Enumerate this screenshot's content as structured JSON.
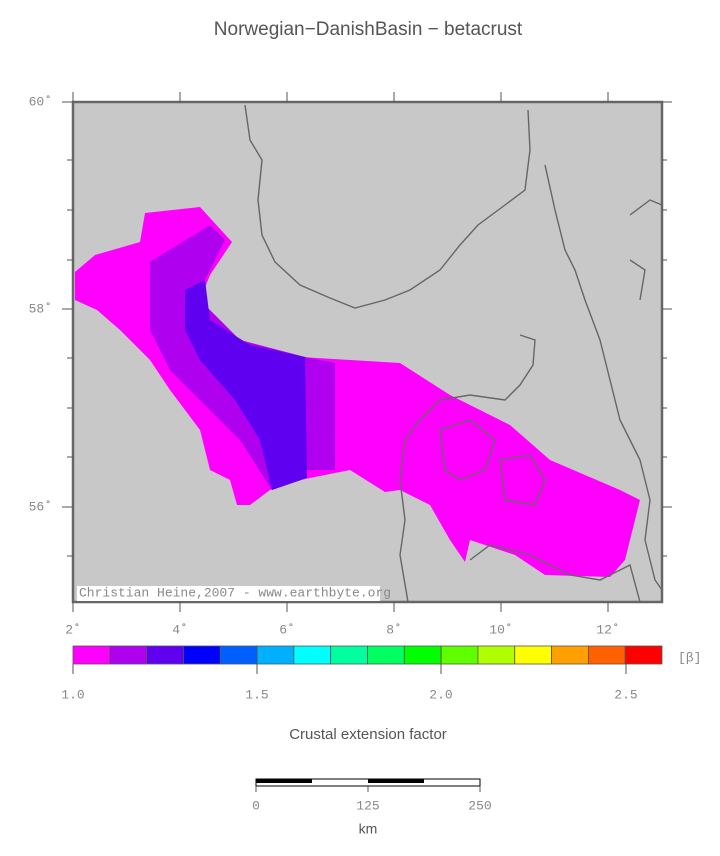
{
  "title": "Norwegian−DanishBasin − betacrust",
  "map": {
    "lat_labels": [
      "60˚",
      "58˚",
      "56˚"
    ],
    "lon_labels": [
      "2˚",
      "4˚",
      "6˚",
      "8˚",
      "10˚",
      "12˚"
    ],
    "credit": "Christian Heine,2007 - www.earthbyte.org"
  },
  "legend": {
    "colors": [
      "#ff00ff",
      "#b000f0",
      "#6000f0",
      "#0000ff",
      "#0060ff",
      "#00b0ff",
      "#00ffff",
      "#00ffa0",
      "#00ff60",
      "#00ff00",
      "#60ff00",
      "#b0ff00",
      "#ffff00",
      "#ffa000",
      "#ff6000",
      "#ff0000"
    ],
    "unit": "[β]",
    "tick_labels": [
      "1.0",
      "1.5",
      "2.0",
      "2.5"
    ],
    "caption": "Crustal extension factor"
  },
  "scale_bar": {
    "tick_labels": [
      "0",
      "125",
      "250"
    ],
    "unit": "km"
  }
}
